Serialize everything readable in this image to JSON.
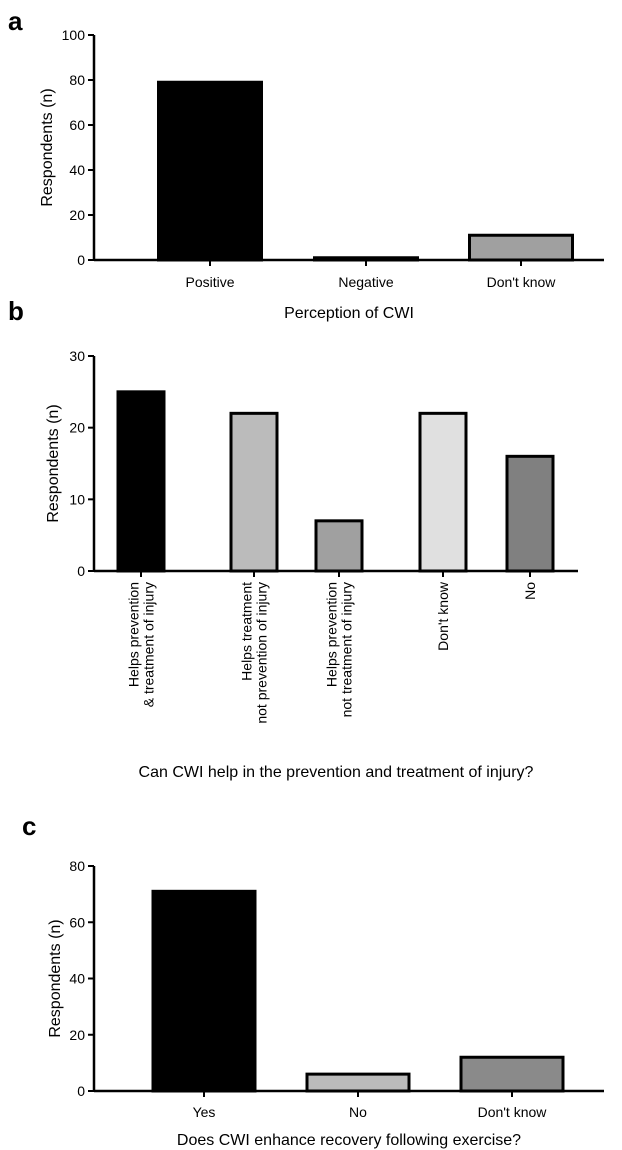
{
  "chart_data": [
    {
      "panel": "a",
      "type": "bar",
      "categories": [
        "Positive",
        "Negative",
        "Don't know"
      ],
      "values": [
        79,
        1,
        11
      ],
      "colors": [
        "#000000",
        "#808080",
        "#a0a0a0"
      ],
      "xlabel": "Perception of CWI",
      "ylabel": "Respondents (n)",
      "ylim": [
        0,
        100
      ],
      "yticks": [
        0,
        20,
        40,
        60,
        80,
        100
      ],
      "grid": false,
      "legend": "none"
    },
    {
      "panel": "b",
      "type": "bar",
      "categories": [
        [
          "Helps prevention",
          "& treatment of injury"
        ],
        [
          "Helps treatment",
          "not prevention of injury"
        ],
        [
          "Helps prevention",
          "not treatment of injury"
        ],
        [
          "Don't know"
        ],
        [
          "No"
        ]
      ],
      "values": [
        25,
        22,
        7,
        22,
        16
      ],
      "colors": [
        "#000000",
        "#bbbbbb",
        "#a0a0a0",
        "#e0e0e0",
        "#808080"
      ],
      "xlabel": "Can CWI help in the prevention and treatment of injury?",
      "ylabel": "Respondents (n)",
      "ylim": [
        0,
        30
      ],
      "yticks": [
        0,
        10,
        20,
        30
      ],
      "grid": false,
      "legend": "none"
    },
    {
      "panel": "c",
      "type": "bar",
      "categories": [
        "Yes",
        "No",
        "Don't know"
      ],
      "values": [
        71,
        6,
        12
      ],
      "colors": [
        "#000000",
        "#bbbbbb",
        "#8a8a8a"
      ],
      "xlabel": "Does  CWI enhance recovery following exercise?",
      "ylabel": "Respondents (n)",
      "ylim": [
        0,
        80
      ],
      "yticks": [
        0,
        20,
        40,
        60,
        80
      ],
      "grid": false,
      "legend": "none"
    }
  ]
}
